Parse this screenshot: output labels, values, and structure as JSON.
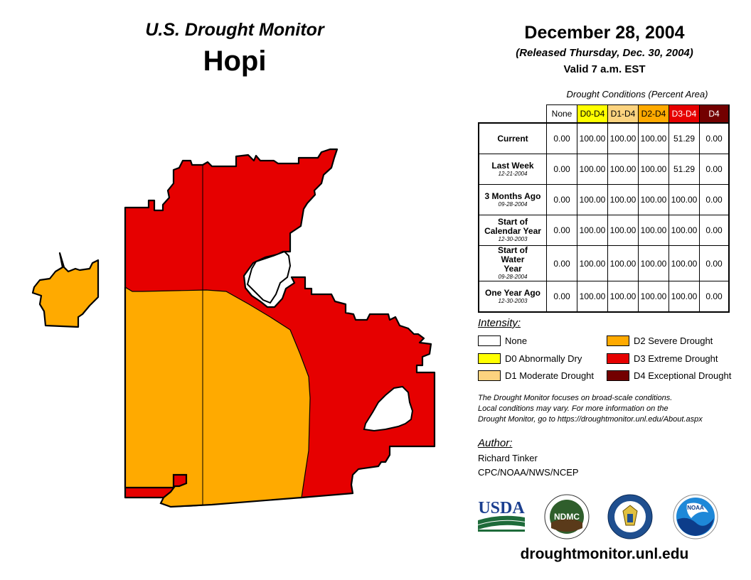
{
  "header": {
    "title": "U.S. Drought Monitor",
    "region": "Hopi",
    "date": "December 28, 2004",
    "released": "(Released Thursday, Dec. 30, 2004)",
    "valid": "Valid 7 a.m. EST"
  },
  "table": {
    "caption": "Drought Conditions (Percent Area)",
    "columns": [
      {
        "label": "None",
        "color": "#ffffff",
        "text_color": "#000000"
      },
      {
        "label": "D0-D4",
        "color": "#ffff00",
        "text_color": "#000000"
      },
      {
        "label": "D1-D4",
        "color": "#fcd37f",
        "text_color": "#000000"
      },
      {
        "label": "D2-D4",
        "color": "#ffaa00",
        "text_color": "#000000"
      },
      {
        "label": "D3-D4",
        "color": "#e60000",
        "text_color": "#ffffff"
      },
      {
        "label": "D4",
        "color": "#730000",
        "text_color": "#ffffff"
      }
    ],
    "rows": [
      {
        "label": "Current",
        "date": "",
        "values": [
          "0.00",
          "100.00",
          "100.00",
          "100.00",
          "51.29",
          "0.00"
        ]
      },
      {
        "label": "Last Week",
        "date": "12-21-2004",
        "values": [
          "0.00",
          "100.00",
          "100.00",
          "100.00",
          "51.29",
          "0.00"
        ]
      },
      {
        "label": "3 Months Ago",
        "date": "09-28-2004",
        "values": [
          "0.00",
          "100.00",
          "100.00",
          "100.00",
          "100.00",
          "0.00"
        ]
      },
      {
        "label": "Start of Calendar Year",
        "date": "12-30-2003",
        "values": [
          "0.00",
          "100.00",
          "100.00",
          "100.00",
          "100.00",
          "0.00"
        ]
      },
      {
        "label": "Start of Water Year",
        "date": "09-28-2004",
        "values": [
          "0.00",
          "100.00",
          "100.00",
          "100.00",
          "100.00",
          "0.00"
        ]
      },
      {
        "label": "One Year Ago",
        "date": "12-30-2003",
        "values": [
          "0.00",
          "100.00",
          "100.00",
          "100.00",
          "100.00",
          "0.00"
        ]
      }
    ]
  },
  "legend": {
    "title": "Intensity:",
    "items": [
      {
        "label": "None",
        "color": "#ffffff"
      },
      {
        "label": "D0 Abnormally Dry",
        "color": "#ffff00"
      },
      {
        "label": "D1 Moderate Drought",
        "color": "#fcd37f"
      },
      {
        "label": "D2 Severe Drought",
        "color": "#ffaa00"
      },
      {
        "label": "D3 Extreme Drought",
        "color": "#e60000"
      },
      {
        "label": "D4 Exceptional Drought",
        "color": "#730000"
      }
    ]
  },
  "note": {
    "line1": "The Drought Monitor focuses on broad-scale conditions.",
    "line2": "Local conditions may vary. For more information on the",
    "line3": "Drought Monitor, go to https://droughtmonitor.unl.edu/About.aspx"
  },
  "author": {
    "title": "Author:",
    "name": "Richard Tinker",
    "org": "CPC/NOAA/NWS/NCEP"
  },
  "logos": {
    "usda": "USDA",
    "ndmc": "NDMC",
    "noaa": "NOAA"
  },
  "website": "droughtmonitor.unl.edu",
  "colors": {
    "d2": "#ffaa00",
    "d3": "#e60000",
    "outline": "#000000"
  }
}
